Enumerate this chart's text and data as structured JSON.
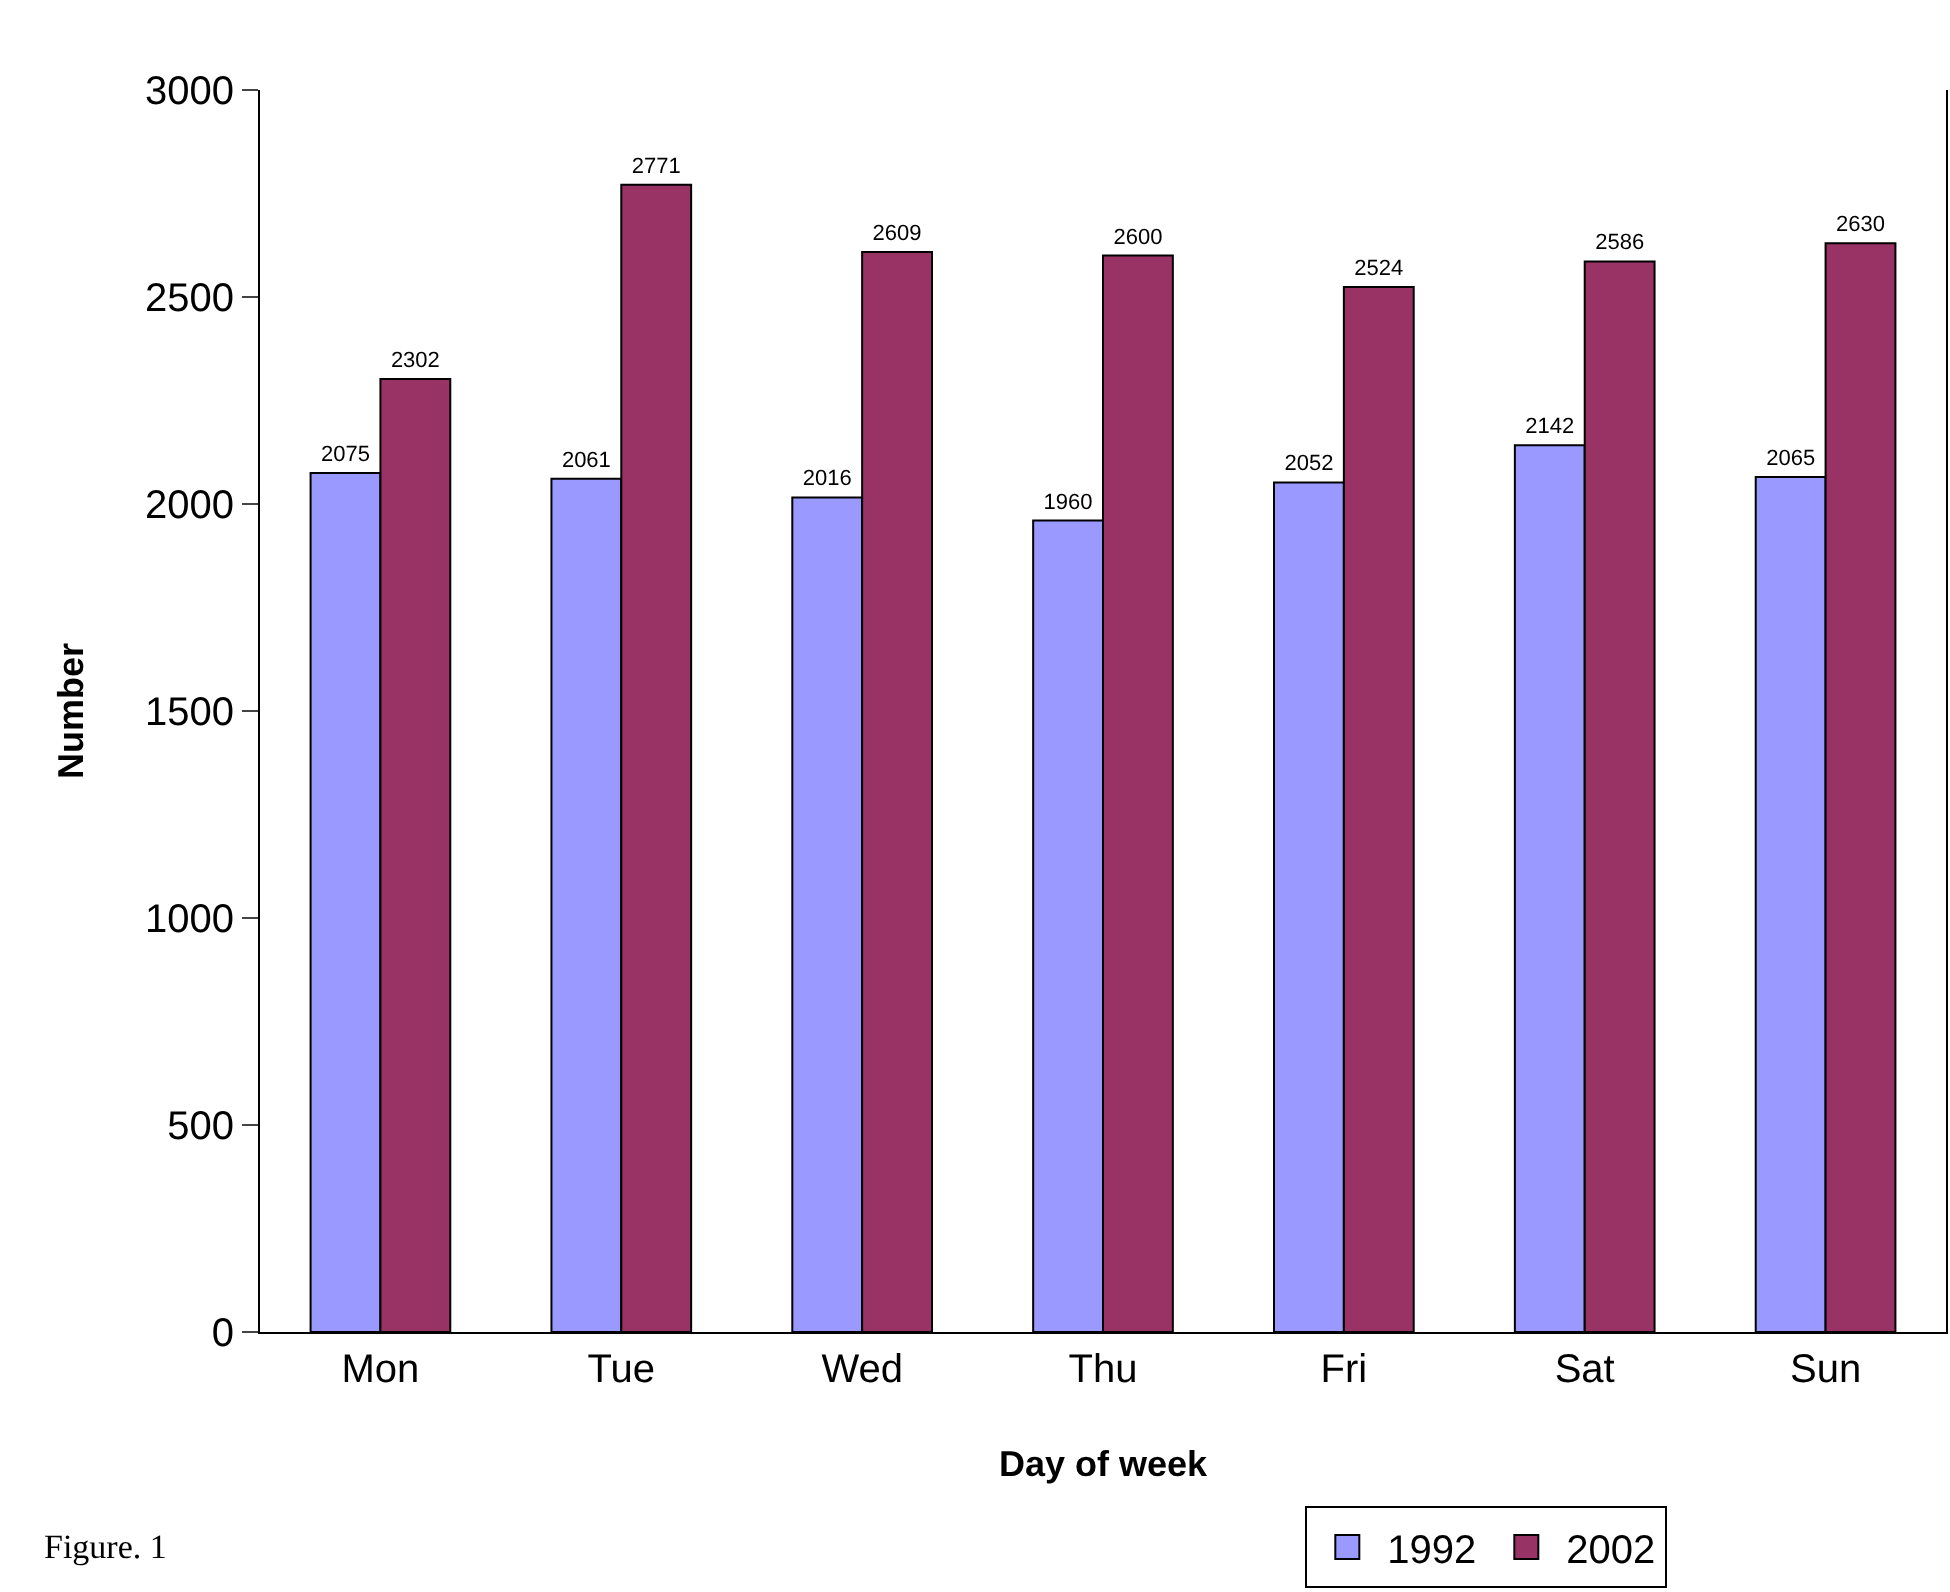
{
  "chart_data": {
    "type": "bar",
    "xlabel": "Day of week",
    "ylabel": "Number",
    "categories": [
      "Mon",
      "Tue",
      "Wed",
      "Thu",
      "Fri",
      "Sat",
      "Sun"
    ],
    "series": [
      {
        "name": "1992",
        "color": "#9999ff",
        "values": [
          2075,
          2061,
          2016,
          1960,
          2052,
          2142,
          2065
        ]
      },
      {
        "name": "2002",
        "color": "#993366",
        "values": [
          2302,
          2771,
          2609,
          2600,
          2524,
          2586,
          2630
        ]
      }
    ],
    "ylim": [
      0,
      3000
    ],
    "yticks": [
      0,
      500,
      1000,
      1500,
      2000,
      2500,
      3000
    ],
    "grid": false,
    "data_labels": true,
    "legend": "bottom right",
    "annotations": [
      "Figure. 1"
    ]
  }
}
